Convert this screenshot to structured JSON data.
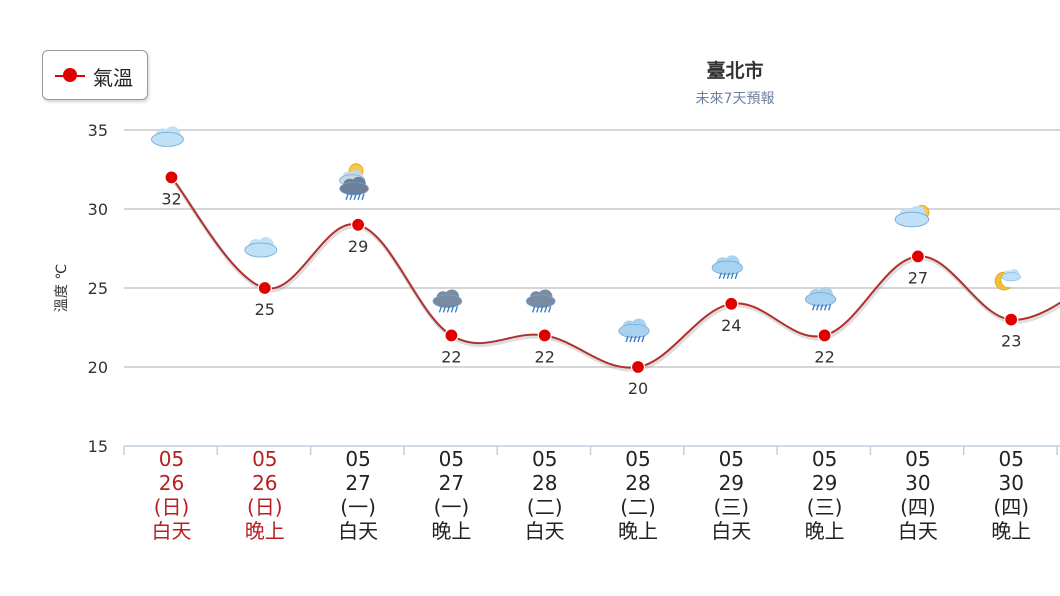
{
  "legend": {
    "label": "氣溫",
    "color": "#e00000"
  },
  "header": {
    "title": "臺北市",
    "subtitle": "未來7天預報"
  },
  "chart_data": {
    "type": "line",
    "title": "臺北市",
    "subtitle": "未來7天預報",
    "ylabel": "溫度 ℃",
    "ylim": [
      15,
      35
    ],
    "yticks": [
      15,
      20,
      25,
      30,
      35
    ],
    "grid": true,
    "legend_position": "top-left",
    "line_color": "#b03030",
    "point_color": "#e00000",
    "categories": [
      {
        "month": "05",
        "day": "26",
        "weekday": "(日)",
        "period": "白天",
        "highlight": true,
        "icon": "cloudy-icon"
      },
      {
        "month": "05",
        "day": "26",
        "weekday": "(日)",
        "period": "晚上",
        "highlight": true,
        "icon": "cloudy-icon"
      },
      {
        "month": "05",
        "day": "27",
        "weekday": "(一)",
        "period": "白天",
        "highlight": false,
        "icon": "thunderstorm-sun-icon"
      },
      {
        "month": "05",
        "day": "27",
        "weekday": "(一)",
        "period": "晚上",
        "highlight": false,
        "icon": "thunderstorm-icon"
      },
      {
        "month": "05",
        "day": "28",
        "weekday": "(二)",
        "period": "白天",
        "highlight": false,
        "icon": "thunderstorm-icon"
      },
      {
        "month": "05",
        "day": "28",
        "weekday": "(二)",
        "period": "晚上",
        "highlight": false,
        "icon": "rain-icon"
      },
      {
        "month": "05",
        "day": "29",
        "weekday": "(三)",
        "period": "白天",
        "highlight": false,
        "icon": "rain-icon"
      },
      {
        "month": "05",
        "day": "29",
        "weekday": "(三)",
        "period": "晚上",
        "highlight": false,
        "icon": "rain-icon"
      },
      {
        "month": "05",
        "day": "30",
        "weekday": "(四)",
        "period": "白天",
        "highlight": false,
        "icon": "partly-cloudy-sun-icon"
      },
      {
        "month": "05",
        "day": "30",
        "weekday": "(四)",
        "period": "晚上",
        "highlight": false,
        "icon": "partly-cloudy-moon-icon"
      }
    ],
    "series": [
      {
        "name": "氣溫",
        "values": [
          32,
          25,
          29,
          22,
          22,
          20,
          24,
          22,
          27,
          23
        ]
      }
    ],
    "next_value_partial": 26,
    "highlight_color": "#b82020",
    "normal_color": "#222222"
  }
}
